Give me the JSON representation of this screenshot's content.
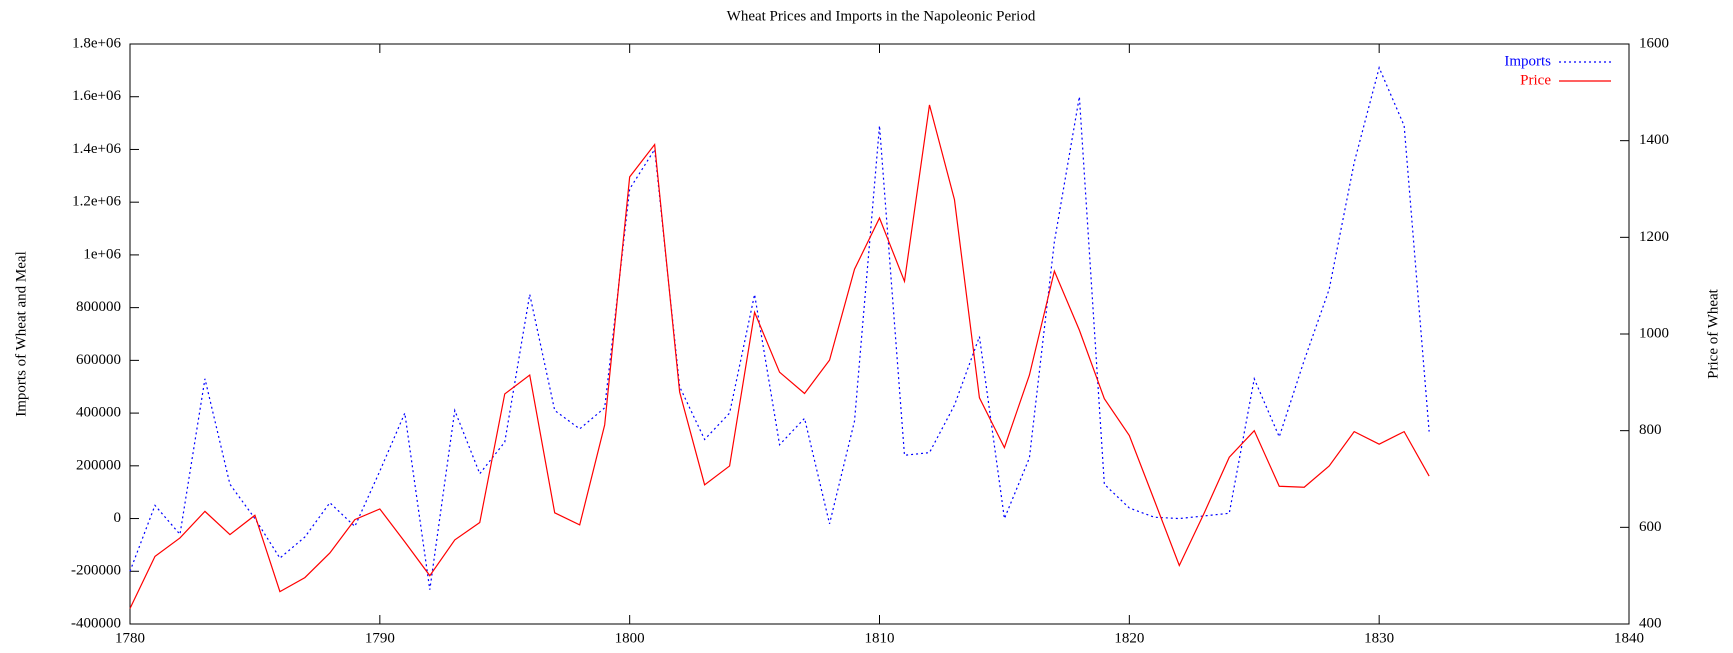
{
  "chart_data": {
    "type": "line",
    "title": "Wheat Prices and Imports in the Napoleonic Period",
    "y_label": "Imports of Wheat and Meal",
    "y2_label": "Price of Wheat",
    "legend": "top-right",
    "x": [
      1780,
      1781,
      1782,
      1783,
      1784,
      1785,
      1786,
      1787,
      1788,
      1789,
      1790,
      1791,
      1792,
      1793,
      1794,
      1795,
      1796,
      1797,
      1798,
      1799,
      1800,
      1801,
      1802,
      1803,
      1804,
      1805,
      1806,
      1807,
      1808,
      1809,
      1810,
      1811,
      1812,
      1813,
      1814,
      1815,
      1816,
      1817,
      1818,
      1819,
      1820,
      1821,
      1822,
      1823,
      1824,
      1825,
      1826,
      1827,
      1828,
      1829,
      1830,
      1831,
      1832
    ],
    "series": [
      {
        "name": "Imports",
        "color": "#0000ff",
        "dash": "dotted",
        "axis": "y",
        "values": [
          -200000,
          50000,
          -60000,
          530000,
          130000,
          0,
          -150000,
          -70000,
          60000,
          -30000,
          180000,
          400000,
          -270000,
          410000,
          170000,
          290000,
          850000,
          410000,
          340000,
          420000,
          1250000,
          1400000,
          500000,
          300000,
          400000,
          850000,
          280000,
          380000,
          -20000,
          370000,
          1490000,
          240000,
          250000,
          430000,
          690000,
          0,
          230000,
          1050000,
          1600000,
          130000,
          40000,
          5000,
          0,
          10000,
          20000,
          530000,
          310000,
          600000,
          870000,
          1350000,
          1710000,
          1490000,
          330000
        ]
      },
      {
        "name": "Price",
        "color": "#ff0000",
        "dash": "solid",
        "axis": "y2",
        "values": [
          432,
          540,
          578,
          633,
          585,
          625,
          467,
          496,
          547,
          616,
          638,
          570,
          500,
          574,
          610,
          876,
          915,
          630,
          605,
          812,
          1325,
          1392,
          880,
          688,
          727,
          1045,
          921,
          877,
          946,
          1134,
          1240,
          1109,
          1474,
          1278,
          868,
          765,
          915,
          1130,
          1008,
          866,
          790,
          656,
          521,
          630,
          745,
          800,
          685,
          683,
          727,
          798,
          772,
          798,
          706
        ]
      }
    ],
    "xlim": [
      1780,
      1840
    ],
    "xticks": [
      1780,
      1790,
      1800,
      1810,
      1820,
      1830,
      1840
    ],
    "ylim": [
      -400000,
      1800000
    ],
    "yticks": [
      -400000,
      -200000,
      0,
      200000,
      400000,
      600000,
      800000,
      {
        "value": 1000000,
        "label": "1e+06"
      },
      {
        "value": 1200000,
        "label": "1.2e+06"
      },
      {
        "value": 1400000,
        "label": "1.4e+06"
      },
      {
        "value": 1600000,
        "label": "1.6e+06"
      },
      {
        "value": 1800000,
        "label": "1.8e+06"
      }
    ],
    "y2lim": [
      400,
      1600
    ],
    "y2ticks": [
      400,
      600,
      800,
      1000,
      1200,
      1400,
      1600
    ]
  }
}
